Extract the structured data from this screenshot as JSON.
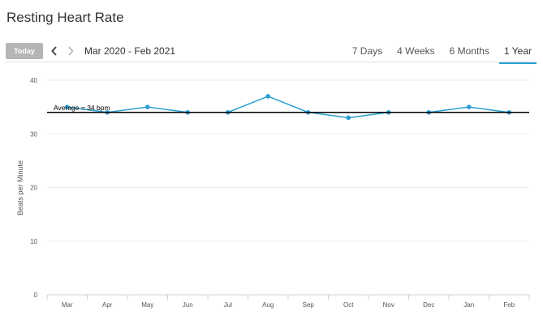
{
  "page": {
    "title": "Resting Heart Rate"
  },
  "toolbar": {
    "today_label": "Today",
    "prev_icon": "chevron-left-icon",
    "next_icon": "chevron-right-icon",
    "date_range": "Mar 2020 - Feb 2021",
    "range_tabs": [
      {
        "label": "7 Days",
        "active": false
      },
      {
        "label": "4 Weeks",
        "active": false
      },
      {
        "label": "6 Months",
        "active": false
      },
      {
        "label": "1 Year",
        "active": true
      }
    ]
  },
  "colors": {
    "series": "#2a9fd0",
    "average_line": "#000000",
    "today_button": "#b5b5b5",
    "active_tab_underline": "#2a9fd0"
  },
  "chart_data": {
    "type": "line",
    "ylabel": "Beats per Minute",
    "xlabel": "",
    "categories": [
      "Mar",
      "Apr",
      "May",
      "Jun",
      "Jul",
      "Aug",
      "Sep",
      "Oct",
      "Nov",
      "Dec",
      "Jan",
      "Feb"
    ],
    "series": [
      {
        "values": [
          35,
          34,
          35,
          34,
          34,
          37,
          34,
          33,
          34,
          34,
          35,
          34
        ]
      }
    ],
    "average": {
      "value": 34,
      "label": "Average = 34 bpm"
    },
    "ylim": [
      0,
      40
    ],
    "yticks": [
      0,
      10,
      20,
      30,
      40
    ],
    "grid": true,
    "legend": "none"
  }
}
